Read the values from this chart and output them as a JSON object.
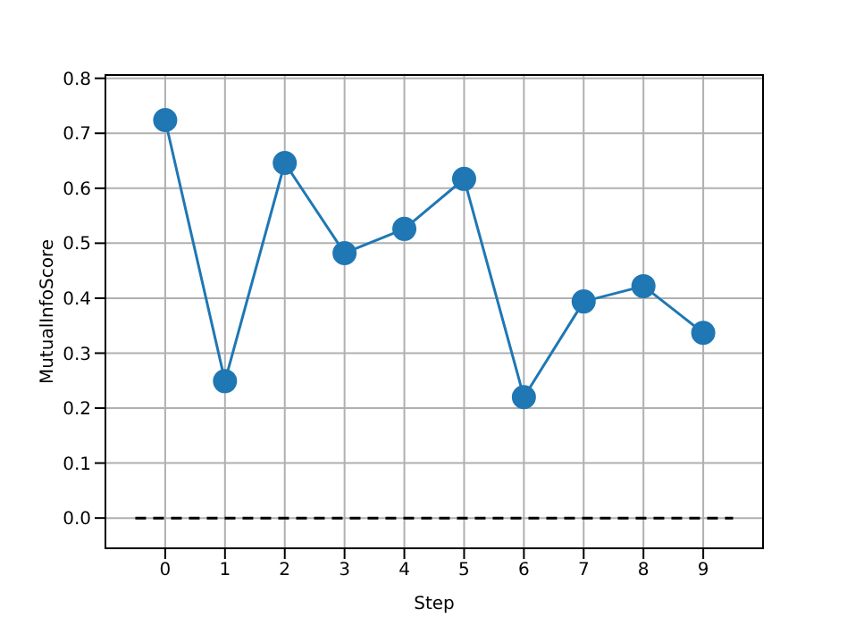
{
  "chart_data": {
    "type": "line",
    "xlabel": "Step",
    "ylabel": "MutualInfoScore",
    "x": [
      0,
      1,
      2,
      3,
      4,
      5,
      6,
      7,
      8,
      9
    ],
    "series": [
      {
        "color": "#1f77b4",
        "values": [
          0.724,
          0.249,
          0.646,
          0.482,
          0.526,
          0.617,
          0.22,
          0.394,
          0.422,
          0.337
        ],
        "marker": "circle",
        "line_style": "solid"
      },
      {
        "color": "#000000",
        "x": [
          -0.5,
          9.5
        ],
        "values": [
          0,
          0
        ],
        "marker": "none",
        "line_style": "dashed"
      }
    ],
    "xlim": [
      -1,
      10
    ],
    "xticks": [
      0,
      1,
      2,
      3,
      4,
      5,
      6,
      7,
      8,
      9
    ],
    "ylim": [
      -0.055,
      0.806
    ],
    "yticks": [
      {
        "value": 0,
        "label": "0.0"
      },
      0.1,
      0.2,
      0.3,
      0.4,
      0.5,
      0.6,
      0.7,
      0.8
    ],
    "grid": true
  }
}
